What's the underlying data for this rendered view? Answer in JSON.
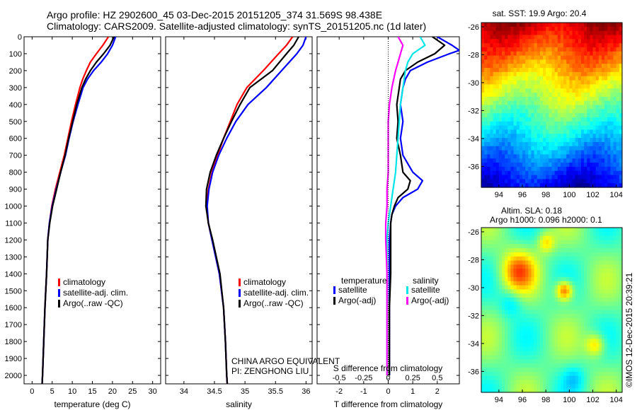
{
  "title_line1": "Argo profile: HZ 2902600_45 03-Dec-2015 20151205_374 31.569S 98.438E",
  "title_line2": "Climatology: CARS2009. Satellite-adjusted climatology: synTS_20151205.nc (1d later)",
  "footer_vertical": "©IMOS 12-Dec-2015 20:39:21",
  "sst_title": "sat. SST: 19.9 Argo: 20.4",
  "sla_title1": "Altim. SLA: 0.18",
  "sla_title2": "Argo h1000: 0.096 h2000: 0.1",
  "china_text1": "CHINA ARGO EQUIVALENT",
  "china_text2": "PI: ZENGHONG LIU",
  "colors": {
    "climatology": "#ff0000",
    "satellite": "#0000ff",
    "argo": "#000000",
    "sal_satellite": "#00e5e5",
    "sal_argo": "#ff00ff"
  },
  "chart_data": [
    {
      "type": "line",
      "xlabel": "temperature (deg C)",
      "xlim": [
        -2,
        32
      ],
      "ylim": [
        2050,
        0
      ],
      "xticks": [
        0,
        5,
        10,
        15,
        20,
        25,
        30
      ],
      "yticks": [
        0,
        100,
        200,
        300,
        400,
        500,
        600,
        700,
        800,
        900,
        1000,
        1100,
        1200,
        1300,
        1400,
        1500,
        1600,
        1700,
        1800,
        1900,
        2000
      ],
      "legend": [
        "climatology",
        "satellite-adj. clim.",
        "Argo(..raw -QC)"
      ],
      "series": [
        {
          "name": "climatology",
          "color": "#ff0000",
          "depth": [
            0,
            50,
            100,
            150,
            200,
            250,
            300,
            400,
            500,
            600,
            700,
            800,
            900,
            1000,
            1100,
            1200,
            1400,
            1600,
            1800,
            2000,
            2050
          ],
          "values": [
            19.0,
            17.6,
            16.0,
            14.5,
            13.5,
            12.6,
            11.9,
            10.8,
            9.8,
            8.9,
            8.0,
            6.9,
            5.8,
            4.9,
            4.3,
            3.9,
            3.6,
            3.2,
            2.9,
            2.6,
            2.5
          ]
        },
        {
          "name": "satellite-adj. clim.",
          "color": "#0000ff",
          "depth": [
            0,
            50,
            100,
            150,
            200,
            250,
            300,
            400,
            500,
            600,
            700,
            800,
            900,
            1000,
            1100,
            1200,
            1400,
            1600,
            1800,
            2000,
            2050
          ],
          "values": [
            20.8,
            20.0,
            18.8,
            17.2,
            15.3,
            13.8,
            12.7,
            11.4,
            10.2,
            9.2,
            8.3,
            7.1,
            6.0,
            5.0,
            4.3,
            3.9,
            3.6,
            3.2,
            2.9,
            2.6,
            2.5
          ]
        },
        {
          "name": "Argo(..raw -QC)",
          "color": "#000000",
          "depth": [
            0,
            50,
            100,
            150,
            200,
            250,
            300,
            400,
            500,
            600,
            700,
            800,
            900,
            1000,
            1100,
            1200,
            1400,
            1600,
            1800,
            2000,
            2050
          ],
          "values": [
            20.4,
            19.4,
            17.8,
            16.0,
            14.5,
            13.3,
            12.4,
            11.1,
            10.1,
            9.1,
            8.2,
            7.1,
            6.1,
            5.1,
            4.4,
            3.9,
            3.6,
            3.2,
            2.9,
            2.6,
            2.5
          ]
        }
      ]
    },
    {
      "type": "line",
      "xlabel": "salinity",
      "xlim": [
        33.7,
        36.1
      ],
      "ylim": [
        2050,
        0
      ],
      "xticks": [
        34,
        34.5,
        35,
        35.5,
        36
      ],
      "legend": [
        "climatology",
        "satellite-adj. clim.",
        "Argo(..raw -QC)"
      ],
      "series": [
        {
          "name": "climatology",
          "color": "#ff0000",
          "depth": [
            0,
            50,
            100,
            200,
            300,
            400,
            500,
            600,
            700,
            800,
            900,
            1000,
            1100,
            1200,
            1400,
            1600,
            1800,
            2000,
            2050
          ],
          "values": [
            35.78,
            35.68,
            35.55,
            35.3,
            35.03,
            34.87,
            34.76,
            34.65,
            34.55,
            34.46,
            34.4,
            34.37,
            34.4,
            34.46,
            34.58,
            34.65,
            34.68,
            34.7,
            34.71
          ]
        },
        {
          "name": "satellite-adj. clim.",
          "color": "#0000ff",
          "depth": [
            0,
            50,
            100,
            200,
            300,
            400,
            500,
            600,
            700,
            800,
            900,
            1000,
            1100,
            1200,
            1400,
            1600,
            1800,
            2000,
            2050
          ],
          "values": [
            36.0,
            35.95,
            35.85,
            35.6,
            35.35,
            35.05,
            34.85,
            34.7,
            34.57,
            34.47,
            34.41,
            34.38,
            34.4,
            34.46,
            34.58,
            34.65,
            34.68,
            34.7,
            34.71
          ]
        },
        {
          "name": "Argo(..raw -QC)",
          "color": "#000000",
          "depth": [
            0,
            50,
            100,
            200,
            300,
            400,
            500,
            600,
            700,
            800,
            900,
            1000,
            1100,
            1200,
            1400,
            1600,
            1800,
            2000,
            2050
          ],
          "values": [
            35.88,
            35.8,
            35.68,
            35.45,
            35.08,
            34.92,
            34.78,
            34.65,
            34.53,
            34.43,
            34.37,
            34.36,
            34.4,
            34.47,
            34.59,
            34.65,
            34.68,
            34.7,
            34.71
          ]
        }
      ]
    },
    {
      "type": "line",
      "xlabel": "T difference from climatology",
      "xlabel_top": "S difference from climatology",
      "xlim": [
        -2.9,
        2.9
      ],
      "ylim": [
        2050,
        0
      ],
      "xticks": [
        -2,
        -1,
        0,
        1,
        2
      ],
      "xticks_top": [
        "-0.5",
        "-0.25",
        "0",
        "0.25",
        "0.5"
      ],
      "legend_temperature": [
        "temperature",
        "satellite",
        "Argo(-adj)"
      ],
      "legend_salinity": [
        "salinity",
        "satellite",
        "Argo(-adj)"
      ],
      "series": [
        {
          "name": "T satellite",
          "color": "#0000ff",
          "depth": [
            0,
            50,
            80,
            100,
            150,
            200,
            250,
            300,
            400,
            500,
            600,
            700,
            800,
            850,
            900,
            950,
            1000,
            1050,
            1100,
            1200,
            1300,
            1400,
            1600,
            2000
          ],
          "values": [
            2.0,
            2.6,
            2.9,
            2.5,
            1.6,
            0.9,
            0.7,
            0.6,
            0.5,
            0.6,
            0.5,
            0.6,
            1.0,
            1.4,
            1.2,
            0.6,
            0.3,
            0.15,
            0.1,
            0.05,
            0.05,
            0.05,
            0.05,
            0.05
          ]
        },
        {
          "name": "T Argo(-adj)",
          "color": "#000000",
          "depth": [
            0,
            50,
            100,
            150,
            200,
            250,
            300,
            400,
            500,
            600,
            700,
            800,
            850,
            900,
            950,
            1000,
            1050,
            1100,
            1200,
            1300,
            1400,
            1600,
            2000
          ],
          "values": [
            1.8,
            2.3,
            1.9,
            1.2,
            0.7,
            0.5,
            0.45,
            0.35,
            0.4,
            0.35,
            0.5,
            0.6,
            0.9,
            0.8,
            0.4,
            0.25,
            0.15,
            0.1,
            0.1,
            0.1,
            0.1,
            0.05,
            0.05
          ]
        },
        {
          "name": "S satellite",
          "color": "#00e5e5",
          "depth": [
            0,
            50,
            100,
            150,
            200,
            300,
            400,
            500,
            600,
            700,
            800,
            900,
            1000,
            1100,
            1200,
            1400,
            1600,
            1800,
            2000
          ],
          "values": [
            1.3,
            1.5,
            1.0,
            0.8,
            0.7,
            0.6,
            0.5,
            0.45,
            0.4,
            0.35,
            0.3,
            0.2,
            0.1,
            0.0,
            -0.05,
            -0.05,
            -0.05,
            -0.05,
            -0.05
          ]
        },
        {
          "name": "S Argo(-adj)",
          "color": "#ff00ff",
          "depth": [
            0,
            50,
            100,
            150,
            200,
            300,
            400,
            500,
            600,
            700,
            800,
            900,
            1000,
            1100,
            1200,
            1400,
            1600,
            1800,
            2000
          ],
          "values": [
            0.4,
            0.6,
            0.5,
            0.4,
            0.3,
            0.15,
            0.05,
            0.0,
            0.0,
            0.0,
            0.0,
            -0.05,
            -0.05,
            -0.1,
            -0.1,
            -0.05,
            -0.05,
            -0.05,
            -0.05
          ]
        }
      ]
    },
    {
      "type": "heatmap",
      "title": "sat. SST: 19.9 Argo: 20.4",
      "xticks": [
        94,
        96,
        98,
        100,
        102,
        104
      ],
      "yticks": [
        -26,
        -28,
        -30,
        -32,
        -34,
        -36
      ],
      "xlim": [
        92.5,
        104.5
      ],
      "ylim": [
        -25.7,
        -37.5
      ]
    },
    {
      "type": "heatmap",
      "title": "Altim. SLA: 0.18 Argo h1000: 0.096 h2000: 0.1",
      "xticks": [
        94,
        96,
        98,
        100,
        102,
        104
      ],
      "yticks": [
        -26,
        -28,
        -30,
        -32,
        -34,
        -36
      ],
      "xlim": [
        92.5,
        104.5
      ],
      "ylim": [
        -25.7,
        -37.5
      ]
    }
  ]
}
